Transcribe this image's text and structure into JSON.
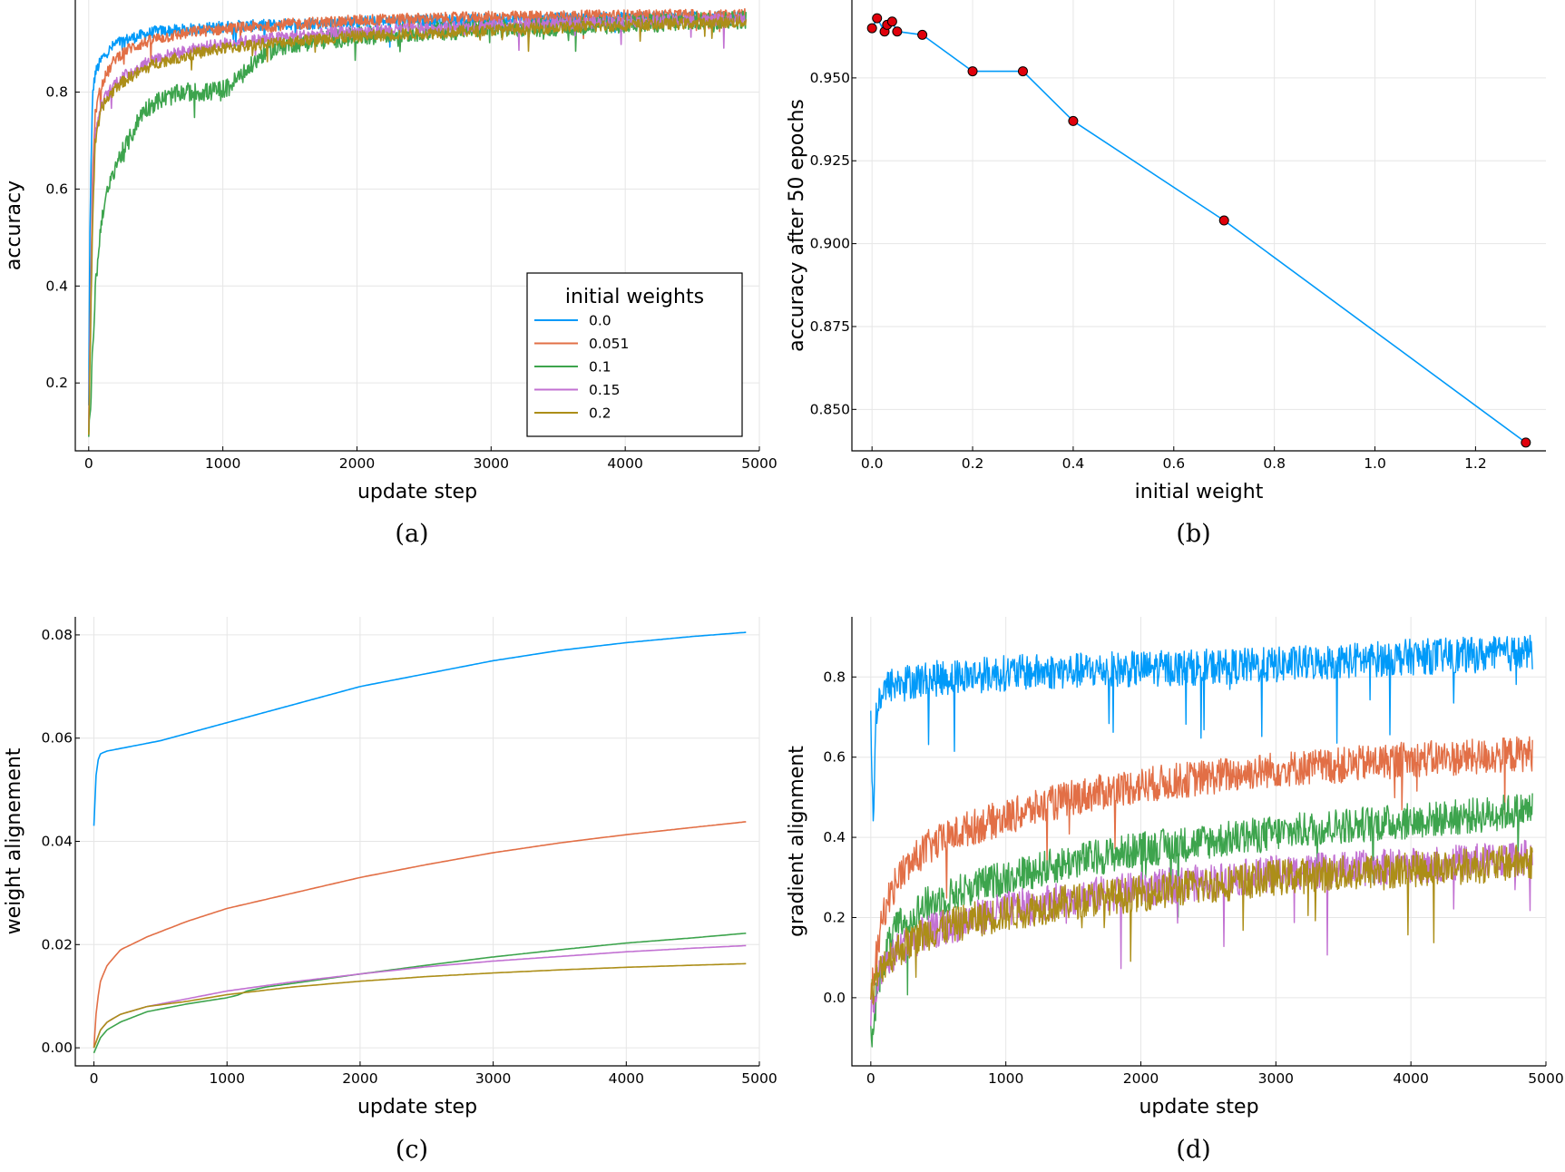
{
  "colors": {
    "s0": "#009af9",
    "s1": "#e26f46",
    "s2": "#3da44d",
    "s3": "#c271d2",
    "s4": "#ac8e18",
    "marker": "#e0000b"
  },
  "chart_data": [
    {
      "id": "a",
      "panel_label": "(a)",
      "type": "line",
      "xlabel": "update step",
      "ylabel": "accuracy",
      "xlim": [
        -100,
        5000
      ],
      "ylim": [
        0.06,
        0.99
      ],
      "xticks": [
        0,
        1000,
        2000,
        3000,
        4000,
        5000
      ],
      "yticks": [
        0.2,
        0.4,
        0.6,
        0.8
      ],
      "grid": true,
      "legend": {
        "title": "initial weights",
        "placement": "bottom-right"
      },
      "series": [
        {
          "name": "0.0",
          "color_key": "s0",
          "x": [
            0,
            10,
            30,
            50,
            100,
            200,
            300,
            500,
            800,
            1000,
            1500,
            2000,
            3000,
            4000,
            4900
          ],
          "y": [
            0.15,
            0.55,
            0.8,
            0.84,
            0.87,
            0.9,
            0.91,
            0.925,
            0.93,
            0.935,
            0.94,
            0.945,
            0.95,
            0.953,
            0.955
          ]
        },
        {
          "name": "0.051",
          "color_key": "s1",
          "x": [
            0,
            10,
            30,
            50,
            100,
            200,
            300,
            500,
            800,
            1000,
            1500,
            2000,
            3000,
            4000,
            4900
          ],
          "y": [
            0.1,
            0.3,
            0.65,
            0.76,
            0.82,
            0.87,
            0.89,
            0.91,
            0.925,
            0.93,
            0.94,
            0.948,
            0.955,
            0.958,
            0.96
          ]
        },
        {
          "name": "0.1",
          "color_key": "s2",
          "x": [
            0,
            20,
            50,
            100,
            150,
            200,
            300,
            400,
            500,
            700,
            900,
            1050,
            1080,
            1200,
            1300,
            1500,
            2000,
            2500,
            3000,
            3500,
            4000,
            4500,
            4900
          ],
          "y": [
            0.08,
            0.2,
            0.4,
            0.55,
            0.6,
            0.65,
            0.7,
            0.76,
            0.78,
            0.8,
            0.8,
            0.81,
            0.82,
            0.85,
            0.88,
            0.9,
            0.915,
            0.925,
            0.93,
            0.935,
            0.94,
            0.945,
            0.95
          ]
        },
        {
          "name": "0.15",
          "color_key": "s3",
          "x": [
            0,
            10,
            30,
            50,
            100,
            200,
            300,
            500,
            800,
            1000,
            1500,
            2000,
            3000,
            4000,
            4900
          ],
          "y": [
            0.1,
            0.3,
            0.6,
            0.72,
            0.78,
            0.82,
            0.84,
            0.87,
            0.89,
            0.9,
            0.915,
            0.925,
            0.938,
            0.945,
            0.95
          ]
        },
        {
          "name": "0.2",
          "color_key": "s4",
          "x": [
            0,
            10,
            30,
            50,
            100,
            200,
            300,
            500,
            800,
            1000,
            1500,
            2000,
            3000,
            4000,
            4900
          ],
          "y": [
            0.1,
            0.25,
            0.55,
            0.7,
            0.77,
            0.81,
            0.83,
            0.86,
            0.88,
            0.89,
            0.905,
            0.915,
            0.928,
            0.938,
            0.945
          ]
        }
      ]
    },
    {
      "id": "b",
      "panel_label": "(b)",
      "type": "line",
      "xlabel": "initial weight",
      "ylabel": "accuracy after 50 epochs",
      "xlim": [
        -0.04,
        1.34
      ],
      "ylim": [
        0.8375,
        0.9735
      ],
      "xticks": [
        0.0,
        0.2,
        0.4,
        0.6,
        0.8,
        1.0,
        1.2
      ],
      "yticks": [
        0.85,
        0.875,
        0.9,
        0.925,
        0.95
      ],
      "grid": true,
      "markers": true,
      "series": [
        {
          "color_key": "s0",
          "x": [
            0.0,
            0.01,
            0.025,
            0.03,
            0.04,
            0.05,
            0.1,
            0.2,
            0.3,
            0.4,
            0.7,
            1.3
          ],
          "y": [
            0.965,
            0.968,
            0.964,
            0.966,
            0.967,
            0.964,
            0.963,
            0.952,
            0.952,
            0.937,
            0.907,
            0.84
          ]
        }
      ]
    },
    {
      "id": "c",
      "panel_label": "(c)",
      "type": "line",
      "xlabel": "update step",
      "ylabel": "weight alignement",
      "xlim": [
        -140,
        5000
      ],
      "ylim": [
        -0.0035,
        0.0835
      ],
      "xticks": [
        0,
        1000,
        2000,
        3000,
        4000,
        5000
      ],
      "yticks": [
        0.0,
        0.02,
        0.04,
        0.06,
        0.08
      ],
      "grid": true,
      "series": [
        {
          "color_key": "s0",
          "x": [
            0,
            20,
            50,
            100,
            200,
            500,
            1000,
            1500,
            2000,
            2500,
            3000,
            3500,
            4000,
            4500,
            4900
          ],
          "y": [
            0.043,
            0.055,
            0.057,
            0.0575,
            0.058,
            0.0595,
            0.063,
            0.0665,
            0.07,
            0.0725,
            0.075,
            0.077,
            0.0785,
            0.0797,
            0.0805
          ]
        },
        {
          "color_key": "s1",
          "x": [
            0,
            20,
            50,
            100,
            200,
            400,
            700,
            1000,
            1500,
            2000,
            2500,
            3000,
            3500,
            4000,
            4500,
            4900
          ],
          "y": [
            0.0,
            0.008,
            0.013,
            0.016,
            0.019,
            0.0215,
            0.0245,
            0.027,
            0.03,
            0.033,
            0.0355,
            0.0378,
            0.0397,
            0.0413,
            0.0427,
            0.0438
          ]
        },
        {
          "color_key": "s2",
          "x": [
            0,
            50,
            100,
            200,
            400,
            700,
            1000,
            1080,
            1150,
            1300,
            1500,
            2000,
            2500,
            3000,
            3500,
            4000,
            4500,
            4900
          ],
          "y": [
            -0.001,
            0.002,
            0.0035,
            0.005,
            0.007,
            0.0085,
            0.0097,
            0.0102,
            0.011,
            0.0118,
            0.0125,
            0.0143,
            0.016,
            0.0176,
            0.019,
            0.0203,
            0.0213,
            0.0222
          ]
        },
        {
          "color_key": "s3",
          "x": [
            0,
            50,
            100,
            200,
            400,
            700,
            1000,
            1500,
            2000,
            2500,
            3000,
            3500,
            4000,
            4500,
            4900
          ],
          "y": [
            0.0,
            0.0035,
            0.005,
            0.0065,
            0.008,
            0.0095,
            0.011,
            0.0128,
            0.0143,
            0.0157,
            0.0168,
            0.0177,
            0.0186,
            0.0193,
            0.0198
          ]
        },
        {
          "color_key": "s4",
          "x": [
            0,
            50,
            100,
            200,
            400,
            700,
            1000,
            1500,
            2000,
            2500,
            3000,
            3500,
            4000,
            4500,
            4900
          ],
          "y": [
            0.0,
            0.0035,
            0.005,
            0.0065,
            0.008,
            0.009,
            0.0103,
            0.0118,
            0.0129,
            0.0138,
            0.0145,
            0.0151,
            0.0156,
            0.016,
            0.0163
          ]
        }
      ]
    },
    {
      "id": "d",
      "panel_label": "(d)",
      "type": "line",
      "xlabel": "update step",
      "ylabel": "gradient alignment",
      "xlim": [
        -140,
        5000
      ],
      "ylim": [
        -0.17,
        0.95
      ],
      "xticks": [
        0,
        1000,
        2000,
        3000,
        4000,
        5000
      ],
      "yticks": [
        0.0,
        0.2,
        0.4,
        0.6,
        0.8
      ],
      "grid": true,
      "series": [
        {
          "color_key": "s0",
          "x": [
            0,
            20,
            40,
            80,
            150,
            300,
            600,
            1000,
            1500,
            2000,
            2500,
            3000,
            3500,
            4000,
            4500,
            4900
          ],
          "y": [
            0.7,
            0.42,
            0.72,
            0.76,
            0.78,
            0.79,
            0.8,
            0.81,
            0.815,
            0.82,
            0.825,
            0.83,
            0.84,
            0.85,
            0.855,
            0.86
          ]
        },
        {
          "color_key": "s1",
          "x": [
            0,
            50,
            100,
            200,
            400,
            700,
            1000,
            1500,
            2000,
            2500,
            3000,
            3500,
            4000,
            4500,
            4900
          ],
          "y": [
            0.0,
            0.12,
            0.22,
            0.3,
            0.37,
            0.42,
            0.45,
            0.5,
            0.53,
            0.55,
            0.57,
            0.58,
            0.595,
            0.6,
            0.61
          ]
        },
        {
          "color_key": "s2",
          "x": [
            0,
            50,
            100,
            200,
            400,
            700,
            1000,
            1500,
            2000,
            2500,
            3000,
            3500,
            4000,
            4500,
            4900
          ],
          "y": [
            -0.1,
            0.02,
            0.1,
            0.18,
            0.23,
            0.27,
            0.3,
            0.34,
            0.37,
            0.39,
            0.41,
            0.43,
            0.44,
            0.455,
            0.47
          ]
        },
        {
          "color_key": "s3",
          "x": [
            0,
            50,
            100,
            200,
            400,
            700,
            1000,
            1500,
            2000,
            2500,
            3000,
            3500,
            4000,
            4500,
            4900
          ],
          "y": [
            -0.05,
            0.04,
            0.08,
            0.12,
            0.16,
            0.19,
            0.22,
            0.25,
            0.27,
            0.29,
            0.31,
            0.32,
            0.33,
            0.34,
            0.35
          ]
        },
        {
          "color_key": "s4",
          "x": [
            0,
            50,
            100,
            200,
            400,
            700,
            1000,
            1500,
            2000,
            2500,
            3000,
            3500,
            4000,
            4500,
            4900
          ],
          "y": [
            0.0,
            0.05,
            0.09,
            0.12,
            0.16,
            0.19,
            0.21,
            0.24,
            0.26,
            0.28,
            0.3,
            0.31,
            0.32,
            0.33,
            0.34
          ]
        }
      ]
    }
  ]
}
